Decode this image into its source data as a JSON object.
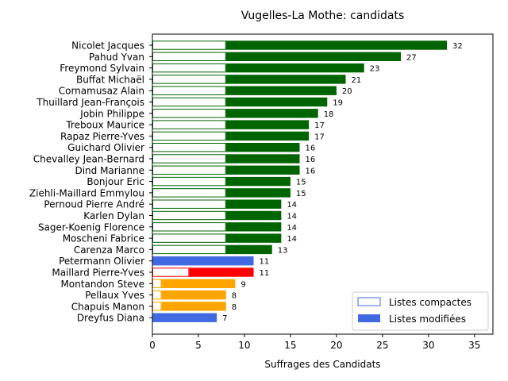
{
  "chart_data": {
    "type": "bar",
    "orientation": "horizontal",
    "title": "Vugelles-La Mothe: candidats",
    "xlabel": "Suffrages des Candidats",
    "ylabel": "",
    "xlim": [
      0,
      37
    ],
    "x_ticks": [
      0,
      5,
      10,
      15,
      20,
      25,
      30,
      35
    ],
    "grid": false,
    "legend_position": "bottom-right",
    "colors": {
      "compact_outline": "#4169e1",
      "legend_compact_fill": "#ffffff",
      "legend_modified_fill": "#4169e1"
    },
    "legend": [
      {
        "label": "Listes compactes",
        "style": "outline"
      },
      {
        "label": "Listes modifiées",
        "style": "solid"
      }
    ],
    "bars": [
      {
        "name": "Nicolet Jacques",
        "total": 32,
        "compact": 8,
        "color": "#006400"
      },
      {
        "name": "Pahud Yvan",
        "total": 27,
        "compact": 8,
        "color": "#006400"
      },
      {
        "name": "Freymond Sylvain",
        "total": 23,
        "compact": 8,
        "color": "#006400"
      },
      {
        "name": "Buffat Michaël",
        "total": 21,
        "compact": 8,
        "color": "#006400"
      },
      {
        "name": "Cornamusaz Alain",
        "total": 20,
        "compact": 8,
        "color": "#006400"
      },
      {
        "name": "Thuillard Jean-François",
        "total": 19,
        "compact": 8,
        "color": "#006400"
      },
      {
        "name": "Jobin Philippe",
        "total": 18,
        "compact": 8,
        "color": "#006400"
      },
      {
        "name": "Treboux Maurice",
        "total": 17,
        "compact": 8,
        "color": "#006400"
      },
      {
        "name": "Rapaz Pierre-Yves",
        "total": 17,
        "compact": 8,
        "color": "#006400"
      },
      {
        "name": "Guichard Olivier",
        "total": 16,
        "compact": 8,
        "color": "#006400"
      },
      {
        "name": "Chevalley Jean-Bernard",
        "total": 16,
        "compact": 8,
        "color": "#006400"
      },
      {
        "name": "Dind Marianne",
        "total": 16,
        "compact": 8,
        "color": "#006400"
      },
      {
        "name": "Bonjour Eric",
        "total": 15,
        "compact": 8,
        "color": "#006400"
      },
      {
        "name": "Ziehli-Maillard Emmylou",
        "total": 15,
        "compact": 8,
        "color": "#006400"
      },
      {
        "name": "Pernoud Pierre André",
        "total": 14,
        "compact": 8,
        "color": "#006400"
      },
      {
        "name": "Karlen Dylan",
        "total": 14,
        "compact": 8,
        "color": "#006400"
      },
      {
        "name": "Sager-Koenig Florence",
        "total": 14,
        "compact": 8,
        "color": "#006400"
      },
      {
        "name": "Moscheni Fabrice",
        "total": 14,
        "compact": 8,
        "color": "#006400"
      },
      {
        "name": "Carenza Marco",
        "total": 13,
        "compact": 8,
        "color": "#006400"
      },
      {
        "name": "Petermann Olivier",
        "total": 11,
        "compact": 0,
        "color": "#4169e1"
      },
      {
        "name": "Maillard Pierre-Yves",
        "total": 11,
        "compact": 4,
        "color": "#ff0000"
      },
      {
        "name": "Montandon Steve",
        "total": 9,
        "compact": 1,
        "color": "#ffa500"
      },
      {
        "name": "Pellaux Yves",
        "total": 8,
        "compact": 1,
        "color": "#ffa500"
      },
      {
        "name": "Chapuis Manon",
        "total": 8,
        "compact": 1,
        "color": "#ffa500"
      },
      {
        "name": "Dreyfus Diana",
        "total": 7,
        "compact": 0,
        "color": "#4169e1"
      }
    ]
  }
}
